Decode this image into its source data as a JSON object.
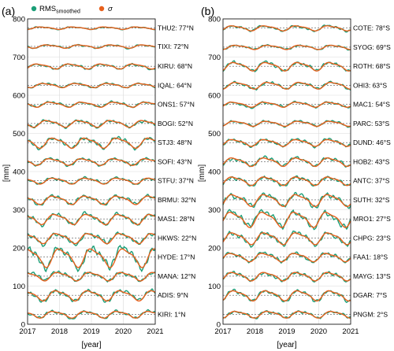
{
  "legend": {
    "rms_label": "RMS",
    "rms_sub": "smoothed",
    "sigma_label": "σ"
  },
  "colors": {
    "rms": "#1a9e77",
    "sigma": "#e8601c",
    "baseline": "#555555"
  },
  "chart_data": [
    {
      "panel": "(a)",
      "type": "line",
      "xlabel": "[year]",
      "ylabel": "[mm]",
      "xlim": [
        2017,
        2021
      ],
      "ylim": [
        0,
        800
      ],
      "xticks": [
        2017,
        2018,
        2019,
        2020,
        2021
      ],
      "yticks": [
        0,
        100,
        200,
        300,
        400,
        500,
        600,
        700,
        800
      ],
      "grid": true,
      "stations": [
        {
          "label": "THU2: 77°N",
          "baseline": 776,
          "amp": 3,
          "phase": 0.2
        },
        {
          "label": "TIXI: 72°N",
          "baseline": 728,
          "amp": 4,
          "phase": 0.4
        },
        {
          "label": "KIRU: 68°N",
          "baseline": 676,
          "amp": 6,
          "phase": 0.1
        },
        {
          "label": "IQAL: 64°N",
          "baseline": 626,
          "amp": 5,
          "phase": 0.3
        },
        {
          "label": "ONS1: 57°N",
          "baseline": 576,
          "amp": 6,
          "phase": 0.5
        },
        {
          "label": "BOGI: 52°N",
          "baseline": 526,
          "amp": 8,
          "phase": 0.4
        },
        {
          "label": "STJ3: 48°N",
          "baseline": 476,
          "amp": 12,
          "phase": 0.6
        },
        {
          "label": "SOFI: 43°N",
          "baseline": 426,
          "amp": 8,
          "phase": 0.5
        },
        {
          "label": "STFU: 37°N",
          "baseline": 376,
          "amp": 7,
          "phase": 0.6
        },
        {
          "label": "BRMU: 32°N",
          "baseline": 326,
          "amp": 10,
          "phase": 0.6
        },
        {
          "label": "MAS1: 28°N",
          "baseline": 276,
          "amp": 12,
          "phase": 0.65
        },
        {
          "label": "HKWS: 22°N",
          "baseline": 226,
          "amp": 12,
          "phase": 0.7
        },
        {
          "label": "HYDE: 17°N",
          "baseline": 176,
          "amp": 22,
          "phase": 0.8
        },
        {
          "label": "MANA: 12°N",
          "baseline": 126,
          "amp": 10,
          "phase": 0.75
        },
        {
          "label": "ADIS: 9°N",
          "baseline": 76,
          "amp": 12,
          "phase": 0.7
        },
        {
          "label": "KIRI: 1°N",
          "baseline": 26,
          "amp": 8,
          "phase": 0.6
        }
      ]
    },
    {
      "panel": "(b)",
      "type": "line",
      "xlabel": "[year]",
      "ylabel": "[mm]",
      "xlim": [
        2017,
        2021
      ],
      "ylim": [
        0,
        800
      ],
      "xticks": [
        2017,
        2018,
        2019,
        2020,
        2021
      ],
      "yticks": [
        0,
        100,
        200,
        300,
        400,
        500,
        600,
        700,
        800
      ],
      "grid": true,
      "stations": [
        {
          "label": "COTE: 78°S",
          "baseline": 776,
          "amp": 6,
          "phase": 0.1
        },
        {
          "label": "SYOG: 69°S",
          "baseline": 726,
          "amp": 5,
          "phase": 0.2
        },
        {
          "label": "ROTH: 68°S",
          "baseline": 676,
          "amp": 10,
          "phase": 0.15
        },
        {
          "label": "OHI3: 63°S",
          "baseline": 626,
          "amp": 8,
          "phase": 0.2
        },
        {
          "label": "MAC1: 54°S",
          "baseline": 576,
          "amp": 6,
          "phase": 0.1
        },
        {
          "label": "PARC: 53°S",
          "baseline": 526,
          "amp": 6,
          "phase": 0.15
        },
        {
          "label": "DUND: 46°S",
          "baseline": 476,
          "amp": 8,
          "phase": 0.1
        },
        {
          "label": "HOB2: 43°S",
          "baseline": 426,
          "amp": 10,
          "phase": 0.1
        },
        {
          "label": "ANTC: 37°S",
          "baseline": 376,
          "amp": 10,
          "phase": 0.1
        },
        {
          "label": "SUTH: 32°S",
          "baseline": 326,
          "amp": 14,
          "phase": 0.1
        },
        {
          "label": "MRO1: 27°S",
          "baseline": 276,
          "amp": 18,
          "phase": 0.05
        },
        {
          "label": "CHPG: 23°S",
          "baseline": 226,
          "amp": 14,
          "phase": 0.1
        },
        {
          "label": "FAA1: 18°S",
          "baseline": 176,
          "amp": 10,
          "phase": 0.05
        },
        {
          "label": "MAYG: 13°S",
          "baseline": 126,
          "amp": 10,
          "phase": 0.1
        },
        {
          "label": "DGAR: 7°S",
          "baseline": 76,
          "amp": 12,
          "phase": 0.15
        },
        {
          "label": "PNGM: 2°S",
          "baseline": 26,
          "amp": 8,
          "phase": 0.2
        }
      ]
    }
  ]
}
